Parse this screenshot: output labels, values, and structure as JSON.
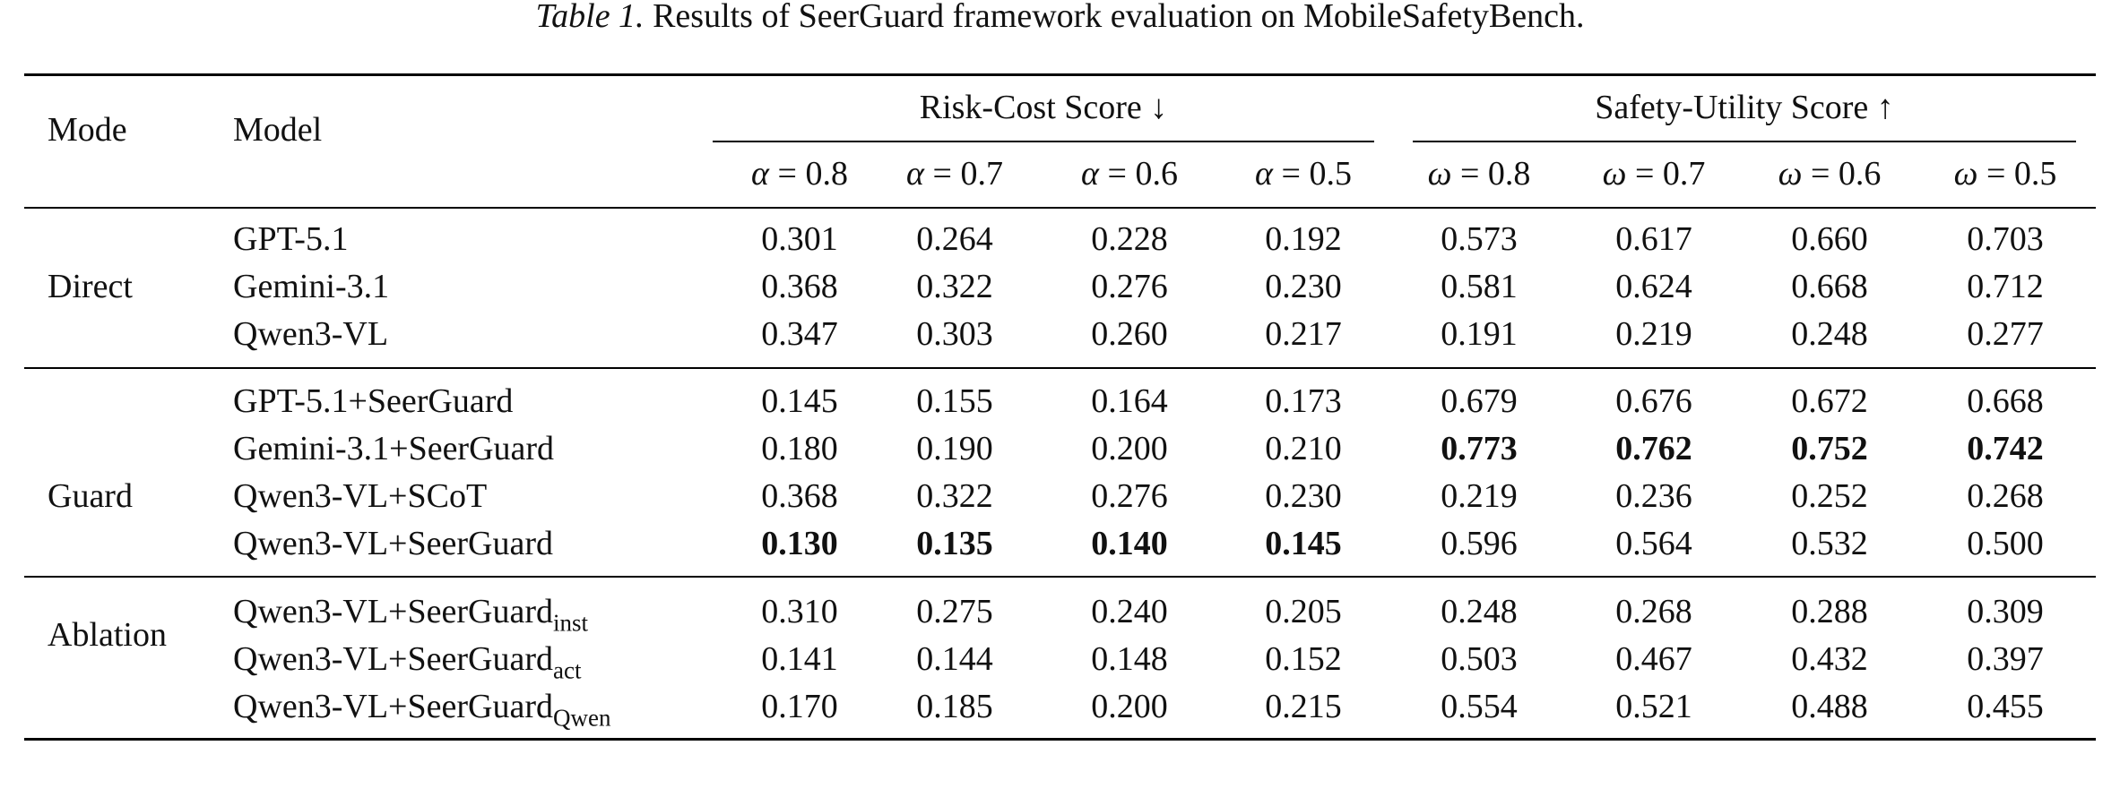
{
  "caption": {
    "label": "Table 1.",
    "text": "Results of SeerGuard framework evaluation on MobileSafetyBench."
  },
  "header": {
    "mode": "Mode",
    "model": "Model",
    "risk_group": "Risk-Cost Score ↓",
    "safety_group": "Safety-Utility Score ↑",
    "risk_symbol": "α",
    "safety_symbol": "ω",
    "params": [
      "0.8",
      "0.7",
      "0.6",
      "0.5"
    ]
  },
  "sections": [
    {
      "mode": "Direct",
      "rows": [
        {
          "model": "GPT-5.1",
          "sub": "",
          "risk": [
            "0.301",
            "0.264",
            "0.228",
            "0.192"
          ],
          "safety": [
            "0.573",
            "0.617",
            "0.660",
            "0.703"
          ],
          "bold_risk": false,
          "bold_safety": false
        },
        {
          "model": "Gemini-3.1",
          "sub": "",
          "risk": [
            "0.368",
            "0.322",
            "0.276",
            "0.230"
          ],
          "safety": [
            "0.581",
            "0.624",
            "0.668",
            "0.712"
          ],
          "bold_risk": false,
          "bold_safety": false
        },
        {
          "model": "Qwen3-VL",
          "sub": "",
          "risk": [
            "0.347",
            "0.303",
            "0.260",
            "0.217"
          ],
          "safety": [
            "0.191",
            "0.219",
            "0.248",
            "0.277"
          ],
          "bold_risk": false,
          "bold_safety": false
        }
      ]
    },
    {
      "mode": "Guard",
      "rows": [
        {
          "model": "GPT-5.1+SeerGuard",
          "sub": "",
          "risk": [
            "0.145",
            "0.155",
            "0.164",
            "0.173"
          ],
          "safety": [
            "0.679",
            "0.676",
            "0.672",
            "0.668"
          ],
          "bold_risk": false,
          "bold_safety": false
        },
        {
          "model": "Gemini-3.1+SeerGuard",
          "sub": "",
          "risk": [
            "0.180",
            "0.190",
            "0.200",
            "0.210"
          ],
          "safety": [
            "0.773",
            "0.762",
            "0.752",
            "0.742"
          ],
          "bold_risk": false,
          "bold_safety": true
        },
        {
          "model": "Qwen3-VL+SCoT",
          "sub": "",
          "risk": [
            "0.368",
            "0.322",
            "0.276",
            "0.230"
          ],
          "safety": [
            "0.219",
            "0.236",
            "0.252",
            "0.268"
          ],
          "bold_risk": false,
          "bold_safety": false
        },
        {
          "model": "Qwen3-VL+SeerGuard",
          "sub": "",
          "risk": [
            "0.130",
            "0.135",
            "0.140",
            "0.145"
          ],
          "safety": [
            "0.596",
            "0.564",
            "0.532",
            "0.500"
          ],
          "bold_risk": true,
          "bold_safety": false
        }
      ]
    },
    {
      "mode": "Ablation",
      "rows": [
        {
          "model": "Qwen3-VL+SeerGuard",
          "sub": "inst",
          "risk": [
            "0.310",
            "0.275",
            "0.240",
            "0.205"
          ],
          "safety": [
            "0.248",
            "0.268",
            "0.288",
            "0.309"
          ],
          "bold_risk": false,
          "bold_safety": false
        },
        {
          "model": "Qwen3-VL+SeerGuard",
          "sub": "act",
          "risk": [
            "0.141",
            "0.144",
            "0.148",
            "0.152"
          ],
          "safety": [
            "0.503",
            "0.467",
            "0.432",
            "0.397"
          ],
          "bold_risk": false,
          "bold_safety": false
        },
        {
          "model": "Qwen3-VL+SeerGuard",
          "sub": "Qwen",
          "risk": [
            "0.170",
            "0.185",
            "0.200",
            "0.215"
          ],
          "safety": [
            "0.554",
            "0.521",
            "0.488",
            "0.455"
          ],
          "bold_risk": false,
          "bold_safety": false
        }
      ]
    }
  ]
}
